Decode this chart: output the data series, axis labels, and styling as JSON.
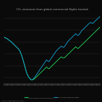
{
  "title": "CO₂ emissions from global commercial flights tracked",
  "background_color": "#0a0a0a",
  "text_color": "#aaaaaa",
  "line1_label": "Total Annual CO2 Emissions (kt)",
  "line2_label": "Total Annual Tracked System",
  "line1_color": "#22cc55",
  "line2_color": "#1199cc",
  "source_text": "Source: Cirium, January 11, 2024",
  "data_green": [
    88,
    87,
    86,
    85,
    83,
    82,
    80,
    78,
    76,
    74,
    72,
    70,
    68,
    65,
    60,
    54,
    47,
    40,
    32,
    26,
    22,
    19,
    17,
    16,
    17,
    18,
    20,
    22,
    24,
    26,
    28,
    30,
    32,
    34,
    36,
    38,
    36,
    35,
    37,
    39,
    41,
    43,
    45,
    47,
    49,
    51,
    53,
    55,
    54,
    53,
    54,
    56,
    58,
    60,
    62,
    64,
    66,
    68,
    70,
    72,
    70,
    69,
    71,
    73,
    75,
    77,
    79,
    81,
    83,
    85,
    87,
    89,
    91,
    93,
    95,
    97,
    99,
    101,
    103,
    105
  ],
  "data_blue": [
    88,
    87,
    86,
    85,
    83,
    82,
    80,
    78,
    76,
    74,
    72,
    70,
    68,
    65,
    60,
    54,
    47,
    40,
    32,
    26,
    22,
    19,
    17,
    16,
    18,
    20,
    23,
    26,
    29,
    32,
    35,
    38,
    41,
    44,
    47,
    50,
    48,
    47,
    50,
    53,
    56,
    59,
    62,
    65,
    67,
    69,
    71,
    73,
    72,
    71,
    73,
    76,
    79,
    82,
    84,
    86,
    88,
    90,
    92,
    94,
    92,
    91,
    93,
    96,
    99,
    101,
    103,
    105,
    107,
    109,
    111,
    113,
    112,
    111,
    113,
    115,
    117,
    119,
    121,
    123
  ],
  "ylim_min": 10,
  "ylim_max": 130,
  "n_points": 80
}
